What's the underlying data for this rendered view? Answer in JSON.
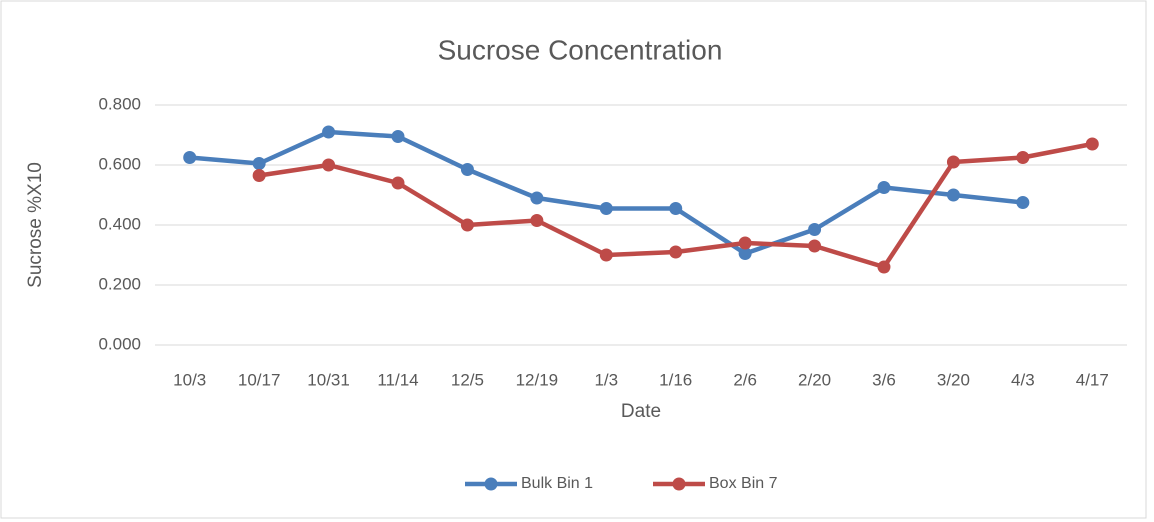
{
  "chart_data": {
    "type": "line",
    "title": "Sucrose Concentration",
    "x_label": "Date",
    "y_label": "Sucrose %X10",
    "categories": [
      "10/3",
      "10/17",
      "10/31",
      "11/14",
      "12/5",
      "12/19",
      "1/3",
      "1/16",
      "2/6",
      "2/20",
      "3/6",
      "3/20",
      "4/3",
      "4/17"
    ],
    "series": [
      {
        "name": "Bulk Bin 1",
        "color": "#4a7ebb",
        "values": [
          0.625,
          0.605,
          0.71,
          0.695,
          0.585,
          0.49,
          0.455,
          0.455,
          0.305,
          0.385,
          0.525,
          0.5,
          0.475,
          null
        ]
      },
      {
        "name": "Box Bin 7",
        "color": "#be4b48",
        "values": [
          null,
          0.565,
          0.6,
          0.54,
          0.4,
          0.415,
          0.3,
          0.31,
          0.34,
          0.33,
          0.26,
          0.61,
          0.625,
          0.67
        ]
      }
    ],
    "ylim": [
      0,
      0.8
    ],
    "yticks": [
      {
        "value": 0,
        "label": "0.000"
      },
      {
        "value": 0.2,
        "label": "0.200"
      },
      {
        "value": 0.4,
        "label": "0.400"
      },
      {
        "value": 0.6,
        "label": "0.600"
      },
      {
        "value": 0.8,
        "label": "0.800"
      }
    ],
    "grid": true,
    "legend": "bottom"
  }
}
